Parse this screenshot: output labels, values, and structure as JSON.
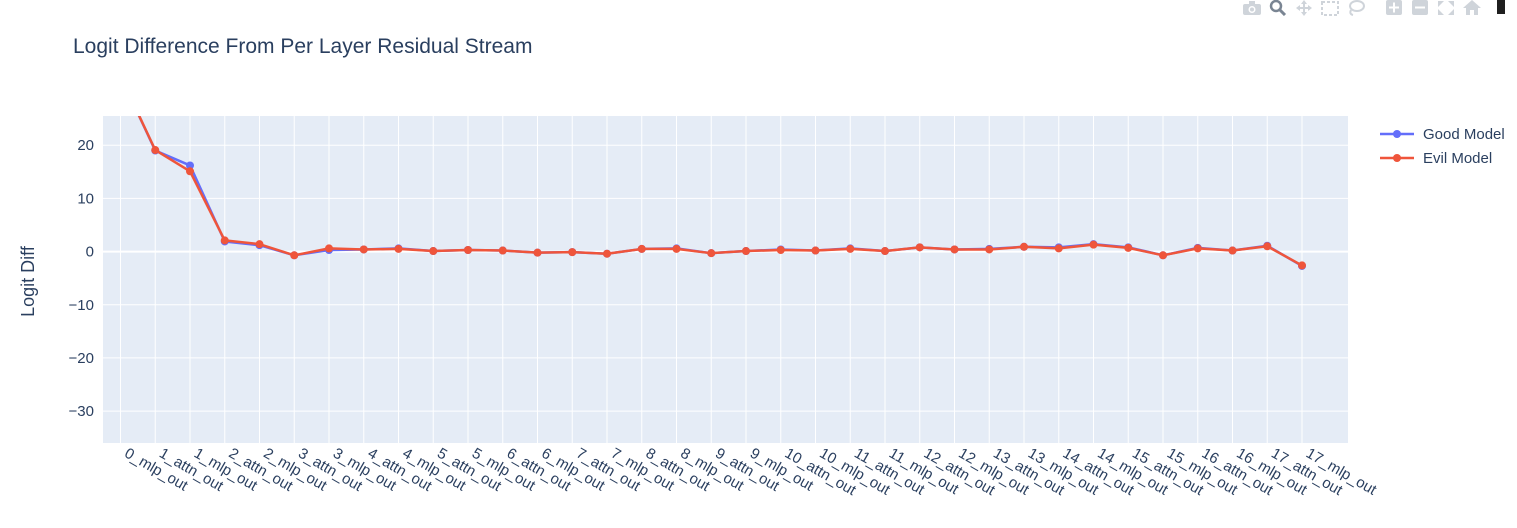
{
  "modebar": {
    "icons": [
      "camera-icon",
      "zoom-icon",
      "pan-icon",
      "box-select-icon",
      "lasso-icon",
      "zoom-in-icon",
      "zoom-out-icon",
      "autoscale-icon",
      "reset-axes-icon",
      "plotly-logo-icon"
    ]
  },
  "colors": {
    "plot_bg": "#e5ecf6",
    "grid": "#ffffff",
    "text": "#2a3f5f",
    "good": "#636efa",
    "evil": "#ef553b"
  },
  "chart_data": {
    "type": "line",
    "title": "Logit Difference From Per Layer Residual Stream",
    "xlabel": "",
    "ylabel": "Logit Diff",
    "ylim": [
      -36,
      25.5
    ],
    "yticks": [
      20,
      10,
      0,
      -10,
      -20,
      -30
    ],
    "ytick_labels": [
      "20",
      "10",
      "0",
      "−10",
      "−20",
      "−30"
    ],
    "grid": true,
    "legend_position": "top-right",
    "categories": [
      "0_mlp_out",
      "1_attn_out",
      "1_mlp_out",
      "2_attn_out",
      "2_mlp_out",
      "3_attn_out",
      "3_mlp_out",
      "4_attn_out",
      "4_mlp_out",
      "5_attn_out",
      "5_mlp_out",
      "6_attn_out",
      "6_mlp_out",
      "7_attn_out",
      "7_mlp_out",
      "8_attn_out",
      "8_mlp_out",
      "9_attn_out",
      "9_mlp_out",
      "10_attn_out",
      "10_mlp_out",
      "11_attn_out",
      "11_mlp_out",
      "12_attn_out",
      "12_mlp_out",
      "13_attn_out",
      "13_mlp_out",
      "14_attn_out",
      "14_mlp_out",
      "15_attn_out",
      "15_mlp_out",
      "16_attn_out",
      "16_mlp_out",
      "17_attn_out",
      "17_mlp_out"
    ],
    "series": [
      {
        "name": "Good Model",
        "color": "#636efa",
        "values": [
          33,
          19.0,
          16.2,
          1.9,
          1.2,
          -0.7,
          0.3,
          0.4,
          0.6,
          0.1,
          0.3,
          0.2,
          -0.2,
          -0.1,
          -0.4,
          0.5,
          0.6,
          -0.3,
          0.1,
          0.4,
          0.2,
          0.6,
          0.1,
          0.8,
          0.4,
          0.5,
          0.9,
          0.8,
          1.4,
          0.8,
          -0.7,
          0.7,
          0.2,
          1.1,
          -2.7
        ]
      },
      {
        "name": "Evil Model",
        "color": "#ef553b",
        "values": [
          33,
          19.1,
          15.1,
          2.1,
          1.4,
          -0.7,
          0.6,
          0.4,
          0.5,
          0.1,
          0.3,
          0.2,
          -0.2,
          -0.1,
          -0.4,
          0.5,
          0.5,
          -0.3,
          0.1,
          0.3,
          0.2,
          0.5,
          0.1,
          0.8,
          0.4,
          0.4,
          0.9,
          0.6,
          1.3,
          0.7,
          -0.7,
          0.6,
          0.2,
          1.0,
          -2.6
        ]
      }
    ]
  }
}
